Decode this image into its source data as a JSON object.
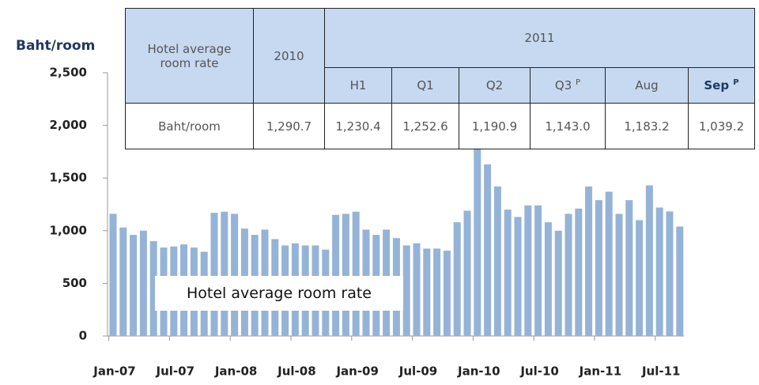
{
  "chart_data": {
    "type": "bar",
    "y_label": "Baht/room",
    "annotation": "Hotel average room rate",
    "color": "#95b3d7",
    "categories": [
      "Jan-07",
      null,
      null,
      null,
      null,
      null,
      "Jul-07",
      null,
      null,
      null,
      null,
      null,
      "Jan-08",
      null,
      null,
      null,
      null,
      null,
      "Jul-08",
      null,
      null,
      null,
      null,
      null,
      "Jan-09",
      null,
      null,
      null,
      null,
      null,
      "Jul-09",
      null,
      null,
      null,
      null,
      null,
      "Jan-10",
      null,
      null,
      null,
      null,
      null,
      "Jul-10",
      null,
      null,
      null,
      null,
      null,
      "Jan-11",
      null,
      null,
      null,
      null,
      null,
      "Jul-11",
      null,
      null
    ],
    "values": [
      1160,
      1030,
      960,
      1000,
      900,
      840,
      850,
      870,
      840,
      800,
      1170,
      1180,
      1160,
      1020,
      960,
      1010,
      920,
      860,
      880,
      860,
      860,
      820,
      1150,
      1160,
      1180,
      1010,
      960,
      1010,
      930,
      860,
      880,
      830,
      830,
      810,
      1080,
      1190,
      1780,
      1630,
      1420,
      1200,
      1130,
      1240,
      1240,
      1080,
      1000,
      1160,
      1210,
      1420,
      1290,
      1370,
      1160,
      1290,
      1100,
      1430,
      1220,
      1183,
      1039
    ],
    "ylim": [
      0,
      2500
    ],
    "yticks": [
      0,
      500,
      {
        "value": 1000,
        "label": "1,000"
      },
      {
        "value": 1500,
        "label": "1,500"
      },
      {
        "value": 2000,
        "label": "2,000"
      },
      {
        "value": 2500,
        "label": "2,500"
      }
    ]
  },
  "table": {
    "label": "Hotel average room rate",
    "year1": "2010",
    "year2": "2011",
    "columns": [
      {
        "text": "H1"
      },
      {
        "text": "Q1"
      },
      {
        "text": "Q2"
      },
      {
        "text": "Q3",
        "sup": "P"
      },
      {
        "text": "Aug"
      },
      {
        "text": "Sep",
        "sup": "P"
      }
    ],
    "row": {
      "label": "Baht/room",
      "cells": [
        "1,290.7",
        "1,230.4",
        "1,252.6",
        "1,190.9",
        "1,143.0",
        "1,183.2",
        "1,039.2"
      ]
    }
  }
}
